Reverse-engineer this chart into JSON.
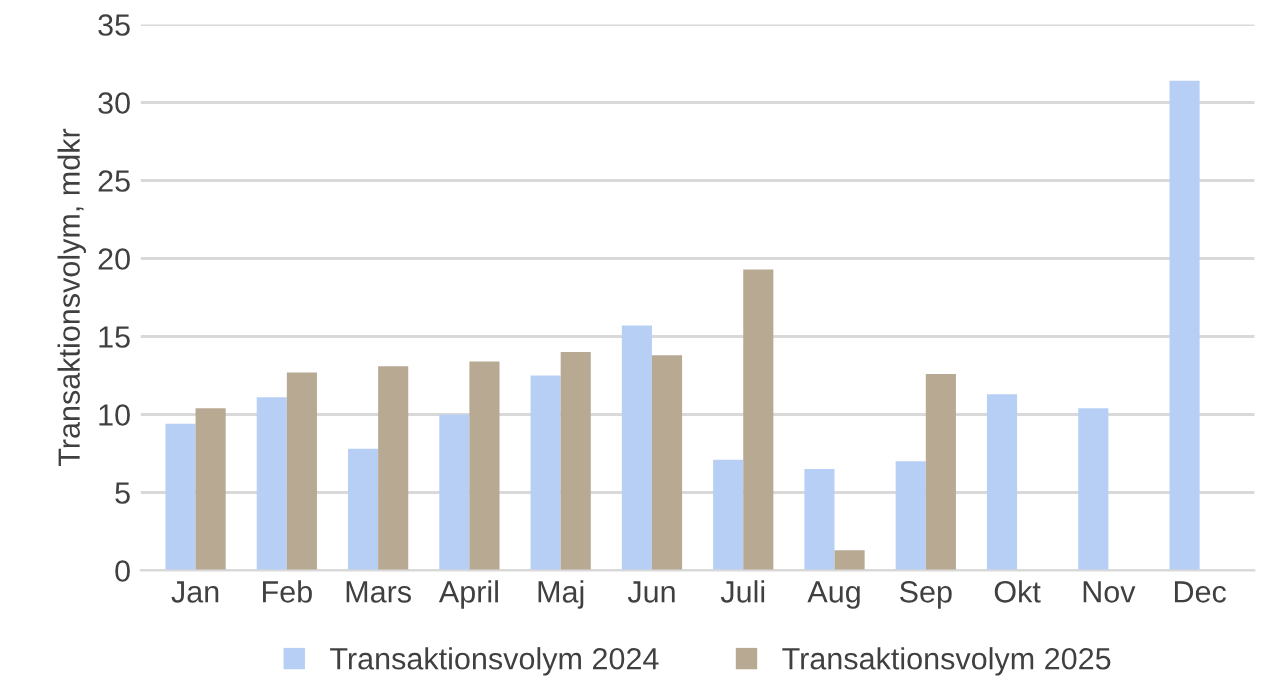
{
  "chart_data": {
    "type": "bar",
    "ylabel": "Transaktionsvolym, mdkr",
    "categories": [
      "Jan",
      "Feb",
      "Mars",
      "April",
      "Maj",
      "Jun",
      "Juli",
      "Aug",
      "Sep",
      "Okt",
      "Nov",
      "Dec"
    ],
    "series": [
      {
        "name": "Transaktionsvolym 2024",
        "color": "#b7cff5",
        "values": [
          9.4,
          11.1,
          7.8,
          10.0,
          12.5,
          15.7,
          7.1,
          6.5,
          7.0,
          11.3,
          10.4,
          31.4
        ]
      },
      {
        "name": "Transaktionsvolym 2025",
        "color": "#b8a993",
        "values": [
          10.4,
          12.7,
          13.1,
          13.4,
          14.0,
          13.8,
          19.3,
          1.3,
          12.6,
          null,
          null,
          null
        ]
      }
    ],
    "ylim": [
      0,
      35
    ],
    "yticks": [
      0,
      5,
      10,
      15,
      20,
      25,
      30,
      35
    ],
    "grid": "y",
    "legend": "bottom"
  }
}
